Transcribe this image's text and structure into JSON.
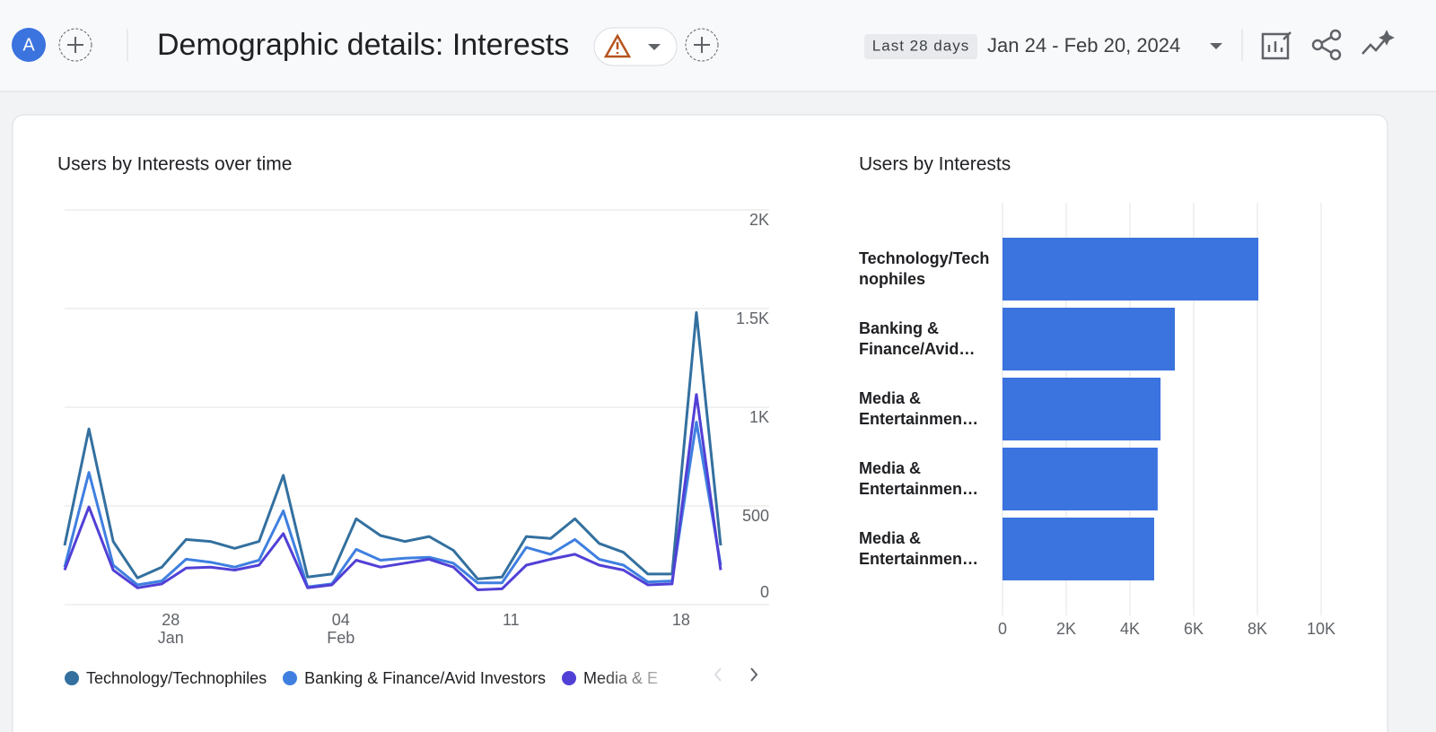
{
  "header": {
    "avatar": "A",
    "title": "Demographic details: Interests",
    "date_preset": "Last 28 days",
    "date_range": "Jan 24 - Feb 20, 2024"
  },
  "chart_data": [
    {
      "type": "line",
      "title": "Users by Interests over time",
      "categories": [
        null,
        null,
        null,
        null,
        "28",
        null,
        null,
        null,
        null,
        null,
        null,
        "04",
        null,
        null,
        null,
        null,
        null,
        null,
        "11",
        null,
        null,
        null,
        null,
        null,
        null,
        "18",
        null,
        null
      ],
      "category_months": [
        null,
        null,
        null,
        null,
        "Jan",
        null,
        null,
        null,
        null,
        null,
        null,
        "Feb",
        null,
        null,
        null,
        null,
        null,
        null,
        null,
        null,
        null,
        null,
        null,
        null,
        null,
        null,
        null,
        null
      ],
      "series": [
        {
          "name": "Technology/Technophiles",
          "color": "#33709f",
          "values": [
            300,
            890,
            320,
            135,
            190,
            330,
            320,
            285,
            320,
            655,
            140,
            155,
            435,
            350,
            320,
            345,
            275,
            130,
            140,
            345,
            335,
            435,
            310,
            265,
            155,
            155,
            1480,
            300
          ]
        },
        {
          "name": "Banking & Finance/Avid Investors",
          "color": "#3f7fe0",
          "values": [
            190,
            670,
            200,
            100,
            120,
            230,
            215,
            190,
            225,
            475,
            90,
            105,
            280,
            225,
            235,
            240,
            210,
            110,
            110,
            290,
            255,
            330,
            230,
            200,
            115,
            120,
            925,
            200
          ]
        },
        {
          "name": "Media & E",
          "color": "#5140d6",
          "values": [
            175,
            495,
            175,
            85,
            105,
            185,
            190,
            175,
            200,
            360,
            85,
            100,
            225,
            190,
            210,
            230,
            190,
            75,
            80,
            200,
            230,
            255,
            200,
            175,
            100,
            105,
            1065,
            175
          ]
        }
      ],
      "ylim": [
        0,
        2000
      ],
      "yticks": [
        0,
        500,
        {
          "value": 1000,
          "label": "1K"
        },
        {
          "value": 1500,
          "label": "1.5K"
        },
        {
          "value": 2000,
          "label": "2K"
        }
      ],
      "grid": true,
      "legend": "bottom"
    },
    {
      "type": "hbar",
      "title": "Users by Interests",
      "categories": [
        "Technology/Technophiles",
        "Banking & Finance/Avid…",
        "Media & Entertainmen…",
        "Media & Entertainmen…",
        "Media & Entertainmen…"
      ],
      "values": [
        8030,
        5410,
        4960,
        4870,
        4760
      ],
      "color": "#3b73df",
      "xlim": [
        0,
        10000
      ],
      "xticks": [
        0,
        {
          "value": 2000,
          "label": "2K"
        },
        {
          "value": 4000,
          "label": "4K"
        },
        {
          "value": 6000,
          "label": "6K"
        },
        {
          "value": 8000,
          "label": "8K"
        },
        {
          "value": 10000,
          "label": "10K"
        }
      ],
      "grid": true
    }
  ]
}
